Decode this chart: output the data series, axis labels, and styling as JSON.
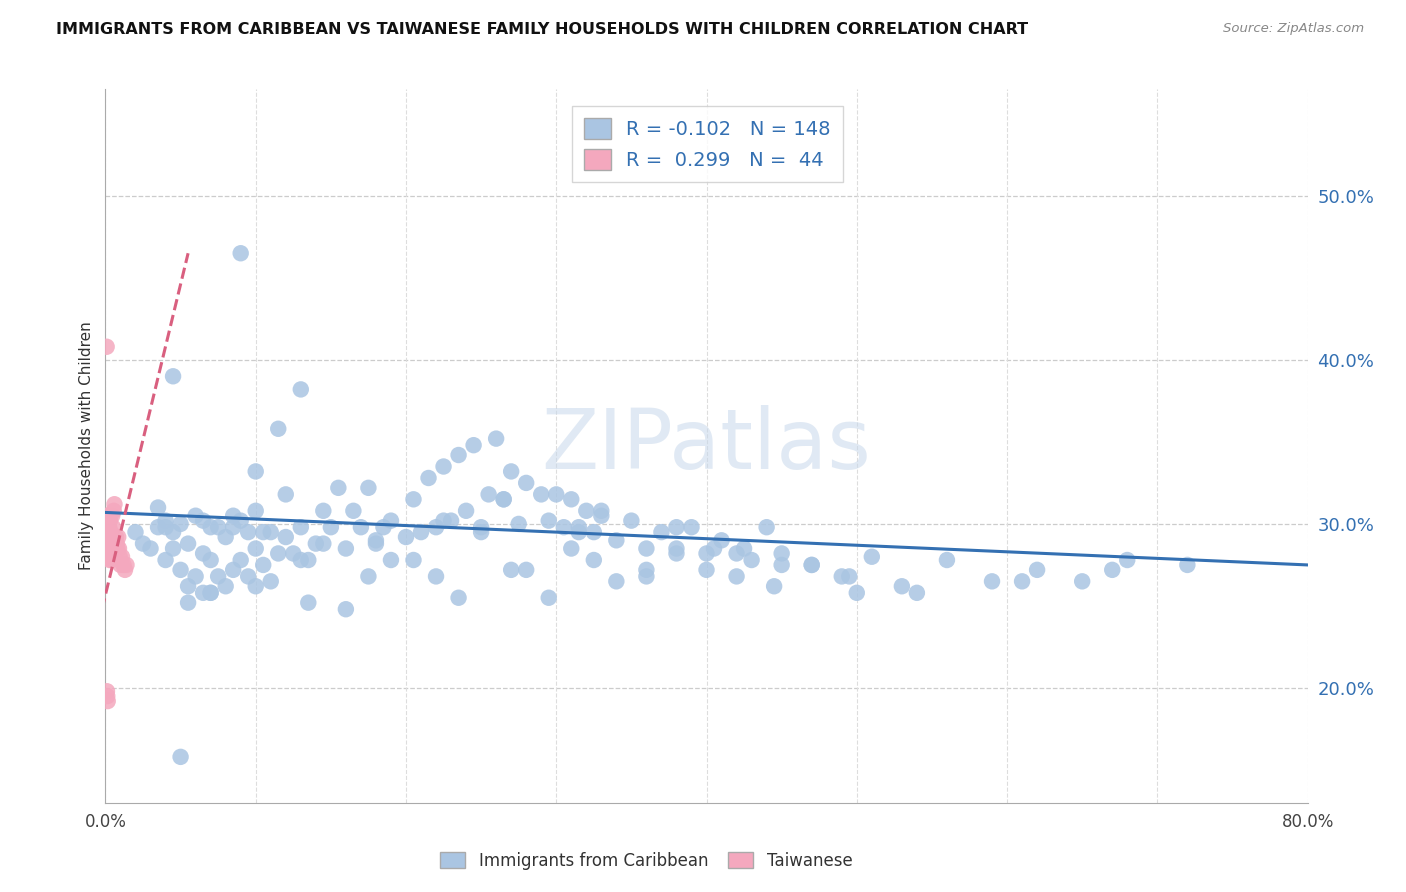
{
  "title": "IMMIGRANTS FROM CARIBBEAN VS TAIWANESE FAMILY HOUSEHOLDS WITH CHILDREN CORRELATION CHART",
  "source": "Source: ZipAtlas.com",
  "ylabel": "Family Households with Children",
  "xlim": [
    0.0,
    0.8
  ],
  "ylim": [
    0.13,
    0.565
  ],
  "xtick_positions": [
    0.0,
    0.1,
    0.2,
    0.3,
    0.4,
    0.5,
    0.6,
    0.7,
    0.8
  ],
  "yticks_right": [
    0.2,
    0.3,
    0.4,
    0.5
  ],
  "ytick_labels_right": [
    "20.0%",
    "30.0%",
    "40.0%",
    "50.0%"
  ],
  "caribbean_R": -0.102,
  "caribbean_N": 148,
  "taiwanese_R": 0.299,
  "taiwanese_N": 44,
  "caribbean_color": "#aac5e2",
  "caribbean_line_color": "#3470b2",
  "taiwanese_color": "#f4a8be",
  "taiwanese_line_color": "#d95f7f",
  "legend_text_color": "#3470b2",
  "watermark": "ZIPatlas",
  "watermark_color": "#c8d8eb",
  "legend_label_caribbean": "Immigrants from Caribbean",
  "legend_label_taiwanese": "Taiwanese",
  "grid_color": "#cccccc",
  "carib_line_x0": 0.0,
  "carib_line_x1": 0.8,
  "carib_line_y0": 0.307,
  "carib_line_y1": 0.275,
  "taiw_line_x0": -0.015,
  "taiw_line_x1": 0.055,
  "taiw_line_y0": 0.2,
  "taiw_line_y1": 0.465,
  "caribbean_x": [
    0.02,
    0.025,
    0.03,
    0.035,
    0.035,
    0.04,
    0.04,
    0.045,
    0.045,
    0.05,
    0.05,
    0.055,
    0.055,
    0.06,
    0.06,
    0.065,
    0.065,
    0.065,
    0.07,
    0.07,
    0.07,
    0.075,
    0.075,
    0.08,
    0.08,
    0.085,
    0.085,
    0.09,
    0.09,
    0.095,
    0.095,
    0.1,
    0.1,
    0.1,
    0.105,
    0.105,
    0.11,
    0.11,
    0.115,
    0.12,
    0.12,
    0.125,
    0.13,
    0.13,
    0.135,
    0.14,
    0.145,
    0.15,
    0.155,
    0.16,
    0.165,
    0.17,
    0.175,
    0.18,
    0.185,
    0.19,
    0.2,
    0.205,
    0.21,
    0.215,
    0.22,
    0.225,
    0.23,
    0.235,
    0.24,
    0.245,
    0.25,
    0.255,
    0.26,
    0.265,
    0.27,
    0.275,
    0.28,
    0.29,
    0.295,
    0.3,
    0.305,
    0.31,
    0.315,
    0.32,
    0.325,
    0.33,
    0.34,
    0.35,
    0.36,
    0.37,
    0.38,
    0.39,
    0.4,
    0.41,
    0.42,
    0.43,
    0.44,
    0.45,
    0.47,
    0.49,
    0.51,
    0.53,
    0.56,
    0.59,
    0.62,
    0.65,
    0.68,
    0.72,
    0.04,
    0.055,
    0.07,
    0.085,
    0.1,
    0.115,
    0.13,
    0.145,
    0.16,
    0.175,
    0.19,
    0.205,
    0.22,
    0.235,
    0.25,
    0.265,
    0.28,
    0.295,
    0.31,
    0.325,
    0.34,
    0.36,
    0.38,
    0.4,
    0.42,
    0.445,
    0.47,
    0.5,
    0.045,
    0.09,
    0.135,
    0.18,
    0.225,
    0.27,
    0.315,
    0.36,
    0.405,
    0.45,
    0.495,
    0.54,
    0.33,
    0.38,
    0.425,
    0.61,
    0.67,
    0.05
  ],
  "caribbean_y": [
    0.295,
    0.288,
    0.285,
    0.298,
    0.31,
    0.278,
    0.302,
    0.285,
    0.295,
    0.272,
    0.3,
    0.262,
    0.288,
    0.268,
    0.305,
    0.258,
    0.282,
    0.302,
    0.258,
    0.278,
    0.298,
    0.268,
    0.298,
    0.262,
    0.292,
    0.272,
    0.298,
    0.278,
    0.302,
    0.268,
    0.295,
    0.262,
    0.285,
    0.308,
    0.275,
    0.295,
    0.265,
    0.295,
    0.282,
    0.292,
    0.318,
    0.282,
    0.278,
    0.298,
    0.278,
    0.288,
    0.288,
    0.298,
    0.322,
    0.285,
    0.308,
    0.298,
    0.322,
    0.288,
    0.298,
    0.278,
    0.292,
    0.315,
    0.295,
    0.328,
    0.298,
    0.335,
    0.302,
    0.342,
    0.308,
    0.348,
    0.295,
    0.318,
    0.352,
    0.315,
    0.332,
    0.3,
    0.325,
    0.318,
    0.302,
    0.318,
    0.298,
    0.315,
    0.298,
    0.308,
    0.295,
    0.305,
    0.29,
    0.302,
    0.285,
    0.295,
    0.282,
    0.298,
    0.282,
    0.29,
    0.282,
    0.278,
    0.298,
    0.282,
    0.275,
    0.268,
    0.28,
    0.262,
    0.278,
    0.265,
    0.272,
    0.265,
    0.278,
    0.275,
    0.298,
    0.252,
    0.258,
    0.305,
    0.332,
    0.358,
    0.382,
    0.308,
    0.248,
    0.268,
    0.302,
    0.278,
    0.268,
    0.255,
    0.298,
    0.315,
    0.272,
    0.255,
    0.285,
    0.278,
    0.265,
    0.272,
    0.285,
    0.272,
    0.268,
    0.262,
    0.275,
    0.258,
    0.39,
    0.465,
    0.252,
    0.29,
    0.302,
    0.272,
    0.295,
    0.268,
    0.285,
    0.275,
    0.268,
    0.258,
    0.308,
    0.298,
    0.285,
    0.265,
    0.272,
    0.158
  ],
  "taiwanese_x": [
    0.0008,
    0.001,
    0.001,
    0.0012,
    0.0015,
    0.0015,
    0.0018,
    0.002,
    0.002,
    0.0022,
    0.0025,
    0.0025,
    0.0028,
    0.003,
    0.003,
    0.0032,
    0.0035,
    0.0035,
    0.0038,
    0.004,
    0.0042,
    0.0045,
    0.0048,
    0.005,
    0.0052,
    0.0055,
    0.0058,
    0.006,
    0.0065,
    0.007,
    0.0075,
    0.008,
    0.0085,
    0.009,
    0.0095,
    0.01,
    0.011,
    0.012,
    0.013,
    0.014,
    0.0008,
    0.001,
    0.0012,
    0.0015
  ],
  "taiwanese_y": [
    0.292,
    0.298,
    0.305,
    0.288,
    0.282,
    0.298,
    0.288,
    0.295,
    0.305,
    0.28,
    0.285,
    0.298,
    0.278,
    0.285,
    0.302,
    0.288,
    0.28,
    0.295,
    0.285,
    0.278,
    0.292,
    0.305,
    0.282,
    0.298,
    0.285,
    0.308,
    0.285,
    0.312,
    0.288,
    0.292,
    0.288,
    0.285,
    0.292,
    0.285,
    0.28,
    0.275,
    0.28,
    0.275,
    0.272,
    0.275,
    0.408,
    0.198,
    0.195,
    0.192
  ]
}
